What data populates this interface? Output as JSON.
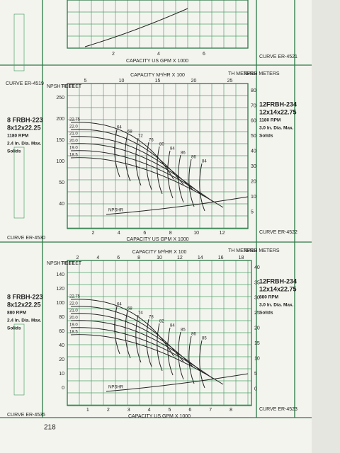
{
  "top_panel": {
    "curve_left": "CURVE ER-4519",
    "curve_right": "CURVE ER-4521",
    "x_axis_label": "CAPACITY US GPM X 1000",
    "x_ticks": [
      "2",
      "4",
      "6"
    ]
  },
  "panels": [
    {
      "left_block": [
        "8 FRBH-223",
        "8x12x22.25",
        "1180 RPM",
        "2.4 In. Dia. Max.",
        "Solids"
      ],
      "left_curve": "CURVE ER-4530",
      "right_block": [
        "12FRBH-234",
        "12x14x22.75",
        "1180 RPM",
        "3.0 In. Dia. Max.",
        "Solids"
      ],
      "curve": "CURVE ER-4522",
      "top_axis_label": "CAPACITY M³/HR X 100",
      "top_ticks": [
        "5",
        "10",
        "15",
        "20",
        "25"
      ],
      "bottom_axis_label": "CAPACITY US GPM X 1000",
      "bottom_ticks": [
        "2",
        "4",
        "6",
        "8",
        "10",
        "12"
      ],
      "left_heads": [
        "NPSH FEET",
        "TH FEET"
      ],
      "left_ticks": [
        "250",
        "200",
        "150",
        "100",
        "50",
        "40"
      ],
      "right_heads": [
        "TH METERS",
        "NPSH METERS"
      ],
      "right_ticks": [
        "80",
        "70",
        "60",
        "50",
        "40",
        "30",
        "20",
        "10",
        "5"
      ],
      "diameters": [
        "22.75",
        "22.0",
        "21.0",
        "20.0",
        "19.0",
        "18.5"
      ],
      "efficiencies": [
        "64",
        "68",
        "72",
        "76",
        "80",
        "84",
        "86",
        "86",
        "84"
      ],
      "npshr": "NPSHR"
    },
    {
      "left_block": [
        "8 FRBH-223",
        "8x12x22.25",
        "880 RPM",
        "2.4 In. Dia. Max.",
        "Solids"
      ],
      "left_curve": "CURVE ER-4535",
      "right_block": [
        "12FRBH-234",
        "12x14x22.75",
        "880 RPM",
        "3.0 In. Dia. Max.",
        "Solids"
      ],
      "curve": "CURVE ER-4523",
      "top_axis_label": "CAPACITY M³/HR X 100",
      "top_ticks": [
        "2",
        "4",
        "6",
        "8",
        "10",
        "12",
        "14",
        "16",
        "18"
      ],
      "bottom_axis_label": "CAPACITY US GPM X 1000",
      "bottom_ticks": [
        "1",
        "2",
        "3",
        "4",
        "5",
        "6",
        "7",
        "8"
      ],
      "left_heads": [
        "NPSH FEET",
        "TH FEET"
      ],
      "left_ticks": [
        "140",
        "120",
        "100",
        "80",
        "60",
        "40",
        "20",
        "10",
        "0"
      ],
      "right_heads": [
        "TH METERS",
        "NPSH METERS"
      ],
      "right_ticks": [
        "40",
        "35",
        "30",
        "25",
        "20",
        "15",
        "10",
        "5",
        "0"
      ],
      "diameters": [
        "22.75",
        "22.0",
        "21.0",
        "20.0",
        "19.0",
        "18.5"
      ],
      "efficiencies": [
        "64",
        "68",
        "74",
        "78",
        "82",
        "84",
        "85",
        "86",
        "85"
      ],
      "npshr": "NPSHR"
    }
  ],
  "page_number": "218"
}
